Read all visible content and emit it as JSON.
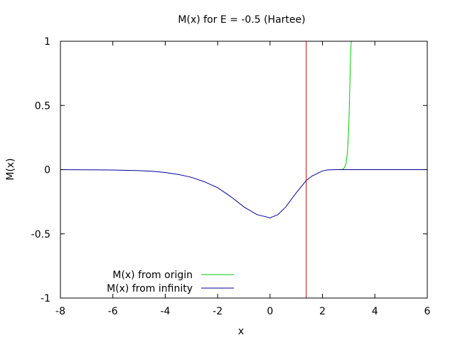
{
  "chart_data": {
    "type": "line",
    "title": "M(x) for E = -0.5 (Hartee)",
    "xlabel": "x",
    "ylabel": "M(x)",
    "xlim": [
      -8,
      6
    ],
    "ylim": [
      -1,
      1
    ],
    "xticks": [
      -8,
      -6,
      -4,
      -2,
      0,
      2,
      4,
      6
    ],
    "yticks": [
      -1,
      -0.5,
      0,
      0.5,
      1
    ],
    "xtick_labels": [
      "-8",
      "-6",
      "-4",
      "-2",
      "0",
      "2",
      "4",
      "6"
    ],
    "ytick_labels": [
      "-1",
      "-0.5",
      "0",
      "0.5",
      "1"
    ],
    "grid": false,
    "legend_position": "bottom-left",
    "vertical_line": {
      "x": 1.38,
      "color": "#cc0000"
    },
    "series": [
      {
        "name": "M(x) from origin",
        "color": "#00cc00",
        "x": [
          2.6,
          2.7,
          2.75,
          2.8,
          2.85,
          2.9,
          2.95,
          3.0,
          3.02,
          3.05,
          3.07,
          3.1
        ],
        "y": [
          0.0,
          0.0,
          0.002,
          0.006,
          0.02,
          0.05,
          0.13,
          0.3,
          0.45,
          0.7,
          0.88,
          1.0
        ]
      },
      {
        "name": "M(x) from infinity",
        "color": "#000099",
        "x": [
          -8,
          -7,
          -6,
          -5,
          -4.5,
          -4,
          -3.5,
          -3,
          -2.5,
          -2,
          -1.5,
          -1,
          -0.5,
          0,
          0.3,
          0.6,
          1.0,
          1.38,
          1.6,
          2.0,
          2.2,
          2.5,
          3,
          4,
          5,
          6
        ],
        "y": [
          0.0,
          -0.001,
          -0.003,
          -0.008,
          -0.013,
          -0.022,
          -0.037,
          -0.06,
          -0.095,
          -0.14,
          -0.21,
          -0.29,
          -0.35,
          -0.375,
          -0.35,
          -0.29,
          -0.18,
          -0.085,
          -0.05,
          -0.01,
          -0.002,
          0.0,
          0.0,
          0.0,
          0.0,
          0.0
        ]
      }
    ]
  }
}
